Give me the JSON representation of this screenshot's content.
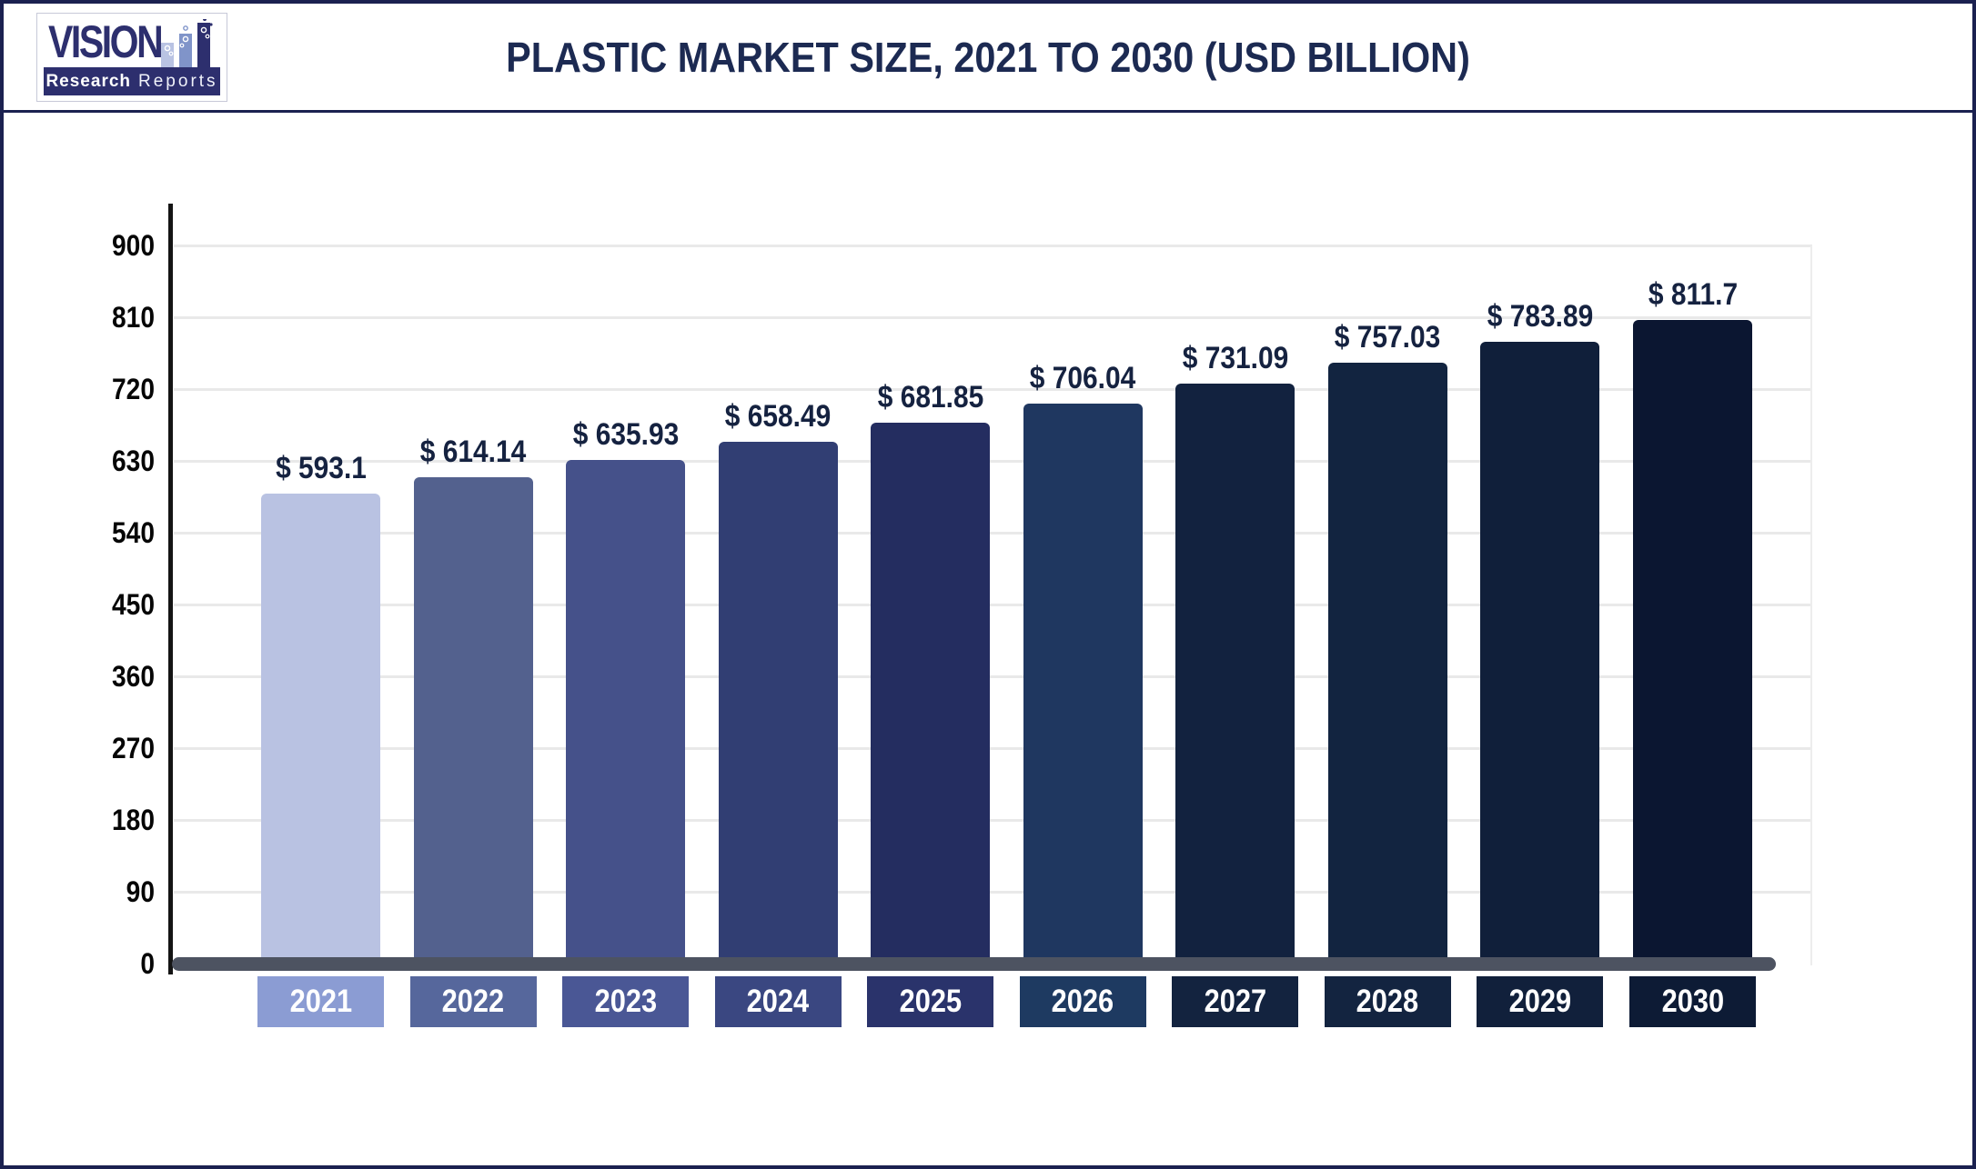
{
  "header": {
    "brand": {
      "name": "VISION",
      "tagline_bold": "Research",
      "tagline_light": "Reports",
      "brand_color": "#2d2f6e",
      "icon_bar_colors": [
        "#b9c3e3",
        "#8094c9",
        "#2d2f6e"
      ]
    },
    "title": "PLASTIC MARKET SIZE, 2021 TO 2030 (USD BILLION)"
  },
  "chart_data": {
    "type": "bar",
    "title": "PLASTIC MARKET SIZE, 2021 TO 2030 (USD BILLION)",
    "xlabel": "",
    "ylabel": "",
    "categories": [
      "2021",
      "2022",
      "2023",
      "2024",
      "2025",
      "2026",
      "2027",
      "2028",
      "2029",
      "2030"
    ],
    "values": [
      593.1,
      614.14,
      635.93,
      658.49,
      681.85,
      706.04,
      731.09,
      757.03,
      783.89,
      811.7
    ],
    "value_labels": [
      "$ 593.1",
      "$ 614.14",
      "$ 635.93",
      "$ 658.49",
      "$ 681.85",
      "$ 706.04",
      "$ 731.09",
      "$ 757.03",
      "$ 783.89",
      "$ 811.7"
    ],
    "units": "USD Billion",
    "ylim": [
      0,
      900
    ],
    "yticks": [
      0,
      90,
      180,
      270,
      360,
      450,
      540,
      630,
      720,
      810,
      900
    ],
    "grid": "horizontal",
    "legend": "none",
    "bar_colors": [
      "#b9c2e2",
      "#53618e",
      "#45518a",
      "#313e73",
      "#242d60",
      "#1f3760",
      "#12223f",
      "#122440",
      "#101f3a",
      "#0b1631"
    ],
    "category_box_colors": [
      "#8b9cd3",
      "#56679c",
      "#4a5795",
      "#3a4781",
      "#2a336b",
      "#1e3a61",
      "#13233f",
      "#132440",
      "#11203b",
      "#0d1b35"
    ],
    "value_label_color": "#152240",
    "tick_label_color": "#060606",
    "axis_line_color": "#141414",
    "baseline_color": "#4d5361",
    "gridline_color": "#e9e9e9"
  },
  "page": {
    "border_color": "#1b2150"
  }
}
